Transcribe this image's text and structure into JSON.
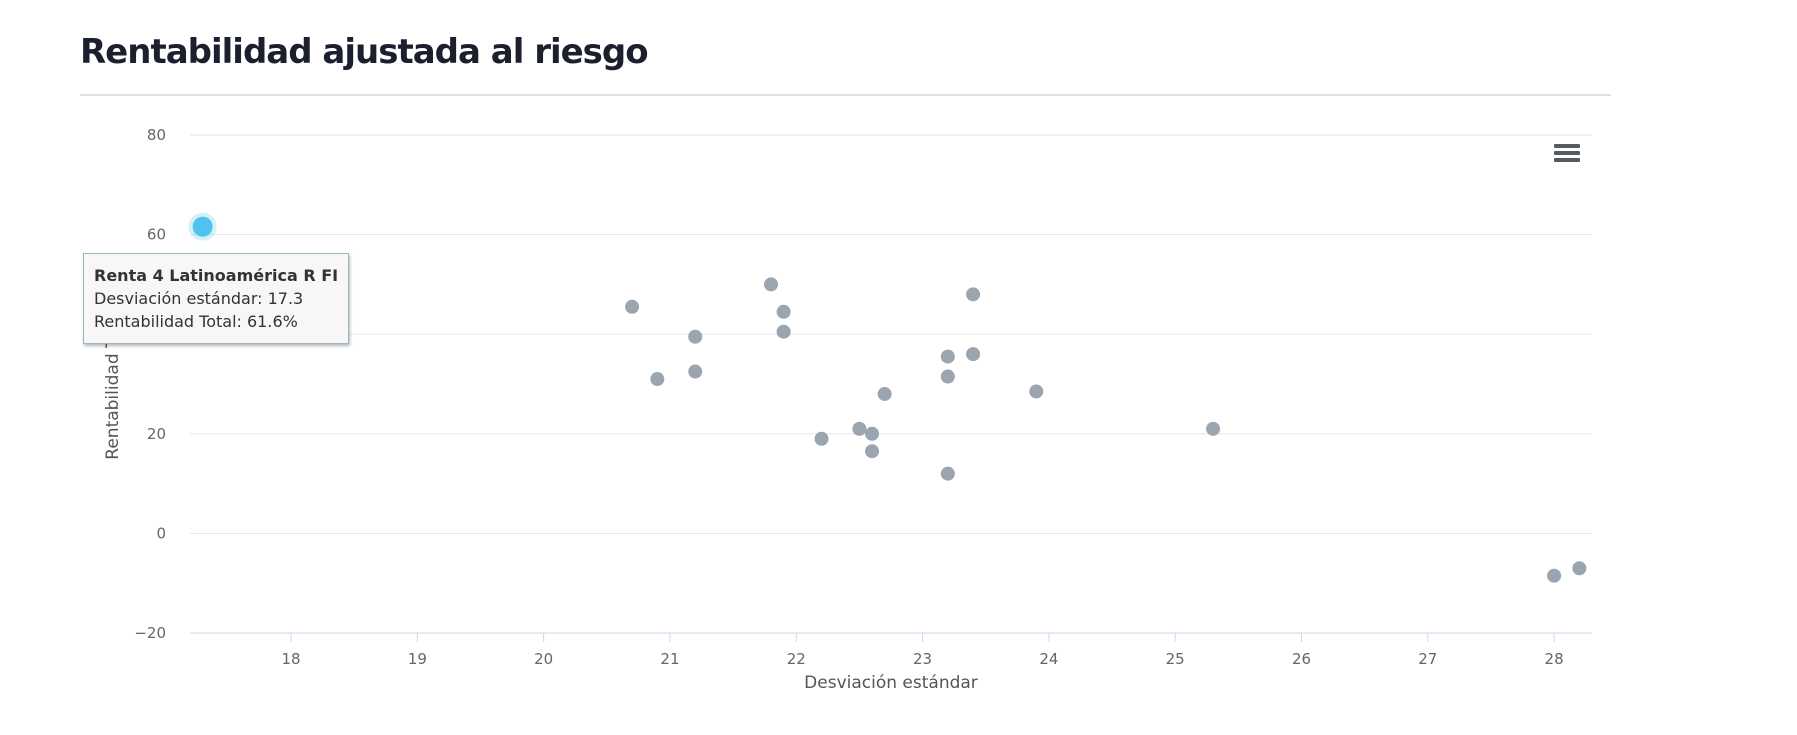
{
  "page": {
    "title": "Rentabilidad ajustada al riesgo"
  },
  "colors": {
    "point": "#9aa5b0",
    "highlight": "#4ec3ef",
    "grid": "#e6e6e6",
    "axis_text": "#666666",
    "title_text": "#1b1f2e"
  },
  "chart_data": {
    "type": "scatter",
    "title": "",
    "xlabel": "Desviación estándar",
    "ylabel": "Rentabilidad Total",
    "xlim": [
      17.2,
      28.3
    ],
    "ylim": [
      -20,
      80
    ],
    "x_ticks": [
      18,
      19,
      20,
      21,
      22,
      23,
      24,
      25,
      26,
      27,
      28
    ],
    "y_ticks": [
      -20,
      0,
      20,
      40,
      60,
      80
    ],
    "grid": true,
    "legend": "none",
    "series": [
      {
        "points": [
          {
            "x": 17.3,
            "y": 61.6
          },
          {
            "x": 20.7,
            "y": 45.5
          },
          {
            "x": 20.9,
            "y": 31.0
          },
          {
            "x": 21.2,
            "y": 39.5
          },
          {
            "x": 21.2,
            "y": 32.5
          },
          {
            "x": 21.8,
            "y": 50.0
          },
          {
            "x": 21.9,
            "y": 44.5
          },
          {
            "x": 21.9,
            "y": 40.5
          },
          {
            "x": 22.2,
            "y": 19.0
          },
          {
            "x": 22.5,
            "y": 21.0
          },
          {
            "x": 22.6,
            "y": 20.0
          },
          {
            "x": 22.6,
            "y": 16.5
          },
          {
            "x": 22.7,
            "y": 28.0
          },
          {
            "x": 23.2,
            "y": 35.5
          },
          {
            "x": 23.2,
            "y": 31.5
          },
          {
            "x": 23.2,
            "y": 12.0
          },
          {
            "x": 23.4,
            "y": 48.0
          },
          {
            "x": 23.4,
            "y": 36.0
          },
          {
            "x": 23.9,
            "y": 28.5
          },
          {
            "x": 25.3,
            "y": 21.0
          },
          {
            "x": 28.0,
            "y": -8.5
          },
          {
            "x": 28.2,
            "y": -7.0
          }
        ]
      }
    ],
    "highlighted_index": 0
  },
  "tooltip": {
    "title": "Renta 4 Latinoamérica R FI",
    "line1": "Desviación estándar: 17.3",
    "line2": "Rentabilidad Total: 61.6%"
  },
  "icons": {
    "menu": "hamburger-menu-icon"
  }
}
